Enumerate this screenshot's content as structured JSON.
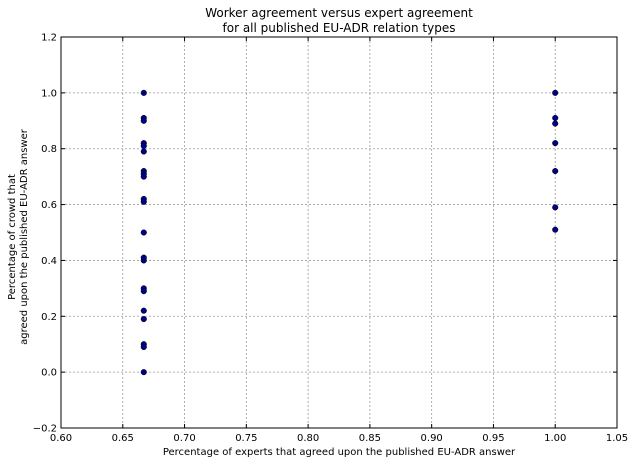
{
  "chart_data": {
    "type": "scatter",
    "title_lines": [
      "Worker agreement versus expert agreement",
      "for all published EU-ADR relation types"
    ],
    "xlabel": "Percentage of experts that agreed upon the published EU-ADR answer",
    "ylabel_lines": [
      "Percentage of crowd that",
      "agreed upon the published EU-ADR answer"
    ],
    "xlim": [
      0.6,
      1.05
    ],
    "ylim": [
      -0.2,
      1.2
    ],
    "x_ticks": [
      "0.60",
      "0.65",
      "0.70",
      "0.75",
      "0.80",
      "0.85",
      "0.90",
      "0.95",
      "1.00",
      "1.05"
    ],
    "y_ticks": [
      "−0.2",
      "0.0",
      "0.2",
      "0.4",
      "0.6",
      "0.8",
      "1.0",
      "1.2"
    ],
    "x_tick_values": [
      0.6,
      0.65,
      0.7,
      0.75,
      0.8,
      0.85,
      0.9,
      0.95,
      1.0,
      1.05
    ],
    "y_tick_values": [
      -0.2,
      0.0,
      0.2,
      0.4,
      0.6,
      0.8,
      1.0,
      1.2
    ],
    "grid": true,
    "marker_color": "#00008b",
    "points": [
      {
        "x": 0.667,
        "y": 1.0
      },
      {
        "x": 0.667,
        "y": 0.91
      },
      {
        "x": 0.667,
        "y": 0.9
      },
      {
        "x": 0.667,
        "y": 0.82
      },
      {
        "x": 0.667,
        "y": 0.81
      },
      {
        "x": 0.667,
        "y": 0.79
      },
      {
        "x": 0.667,
        "y": 0.72
      },
      {
        "x": 0.667,
        "y": 0.71
      },
      {
        "x": 0.667,
        "y": 0.7
      },
      {
        "x": 0.667,
        "y": 0.62
      },
      {
        "x": 0.667,
        "y": 0.61
      },
      {
        "x": 0.667,
        "y": 0.5
      },
      {
        "x": 0.667,
        "y": 0.41
      },
      {
        "x": 0.667,
        "y": 0.4
      },
      {
        "x": 0.667,
        "y": 0.3
      },
      {
        "x": 0.667,
        "y": 0.29
      },
      {
        "x": 0.667,
        "y": 0.22
      },
      {
        "x": 0.667,
        "y": 0.19
      },
      {
        "x": 0.667,
        "y": 0.1
      },
      {
        "x": 0.667,
        "y": 0.09
      },
      {
        "x": 0.667,
        "y": 0.0
      },
      {
        "x": 1.0,
        "y": 1.0
      },
      {
        "x": 1.0,
        "y": 0.91
      },
      {
        "x": 1.0,
        "y": 0.89
      },
      {
        "x": 1.0,
        "y": 0.82
      },
      {
        "x": 1.0,
        "y": 0.72
      },
      {
        "x": 1.0,
        "y": 0.59
      },
      {
        "x": 1.0,
        "y": 0.51
      }
    ]
  }
}
